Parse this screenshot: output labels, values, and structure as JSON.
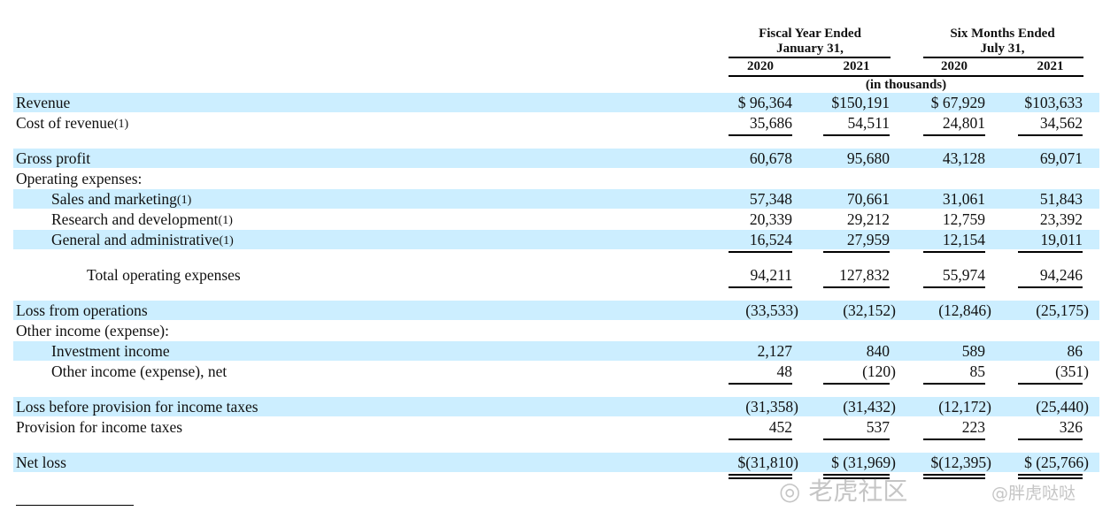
{
  "header": {
    "group1": {
      "line1": "Fiscal Year Ended",
      "line2": "January 31,"
    },
    "group2": {
      "line1": "Six Months Ended",
      "line2": "July 31,"
    },
    "columns": [
      "2020",
      "2021",
      "2020",
      "2021"
    ],
    "units": "(in thousands)"
  },
  "highlight_color": "#cceeff",
  "rows": [
    {
      "label": "Revenue",
      "values": [
        "$ 96,364",
        "$150,191",
        "$ 67,929",
        "$103,633"
      ],
      "highlight": true
    },
    {
      "label": "Cost of revenue",
      "note": "(1)",
      "values": [
        "35,686",
        "54,511",
        "24,801",
        "34,562"
      ],
      "underline": "single"
    },
    {
      "label": "Gross profit",
      "values": [
        "60,678",
        "95,680",
        "43,128",
        "69,071"
      ],
      "highlight": true
    },
    {
      "label": "Operating expenses:",
      "values": []
    },
    {
      "label": "Sales and marketing",
      "note": "(1)",
      "indent": 1,
      "values": [
        "57,348",
        "70,661",
        "31,061",
        "51,843"
      ],
      "highlight": true
    },
    {
      "label": "Research and development",
      "note": "(1)",
      "indent": 1,
      "values": [
        "20,339",
        "29,212",
        "12,759",
        "23,392"
      ]
    },
    {
      "label": "General and administrative",
      "note": "(1)",
      "indent": 1,
      "values": [
        "16,524",
        "27,959",
        "12,154",
        "19,011"
      ],
      "highlight": true,
      "underline": "single"
    },
    {
      "label": "Total operating expenses",
      "indent": 2,
      "values": [
        "94,211",
        "127,832",
        "55,974",
        "94,246"
      ],
      "underline": "single"
    },
    {
      "label": "Loss from operations",
      "values": [
        "(33,533)",
        "(32,152)",
        "(12,846)",
        "(25,175)"
      ],
      "highlight": true
    },
    {
      "label": "Other income (expense):",
      "values": []
    },
    {
      "label": "Investment income",
      "indent": 1,
      "values": [
        "2,127",
        "840",
        "589",
        "86"
      ],
      "highlight": true
    },
    {
      "label": "Other income (expense), net",
      "indent": 1,
      "values": [
        "48",
        "(120)",
        "85",
        "(351)"
      ],
      "underline": "single"
    },
    {
      "label": "Loss before provision for income taxes",
      "values": [
        "(31,358)",
        "(31,432)",
        "(12,172)",
        "(25,440)"
      ],
      "highlight": true
    },
    {
      "label": "Provision for income taxes",
      "values": [
        "452",
        "537",
        "223",
        "326"
      ],
      "underline": "single"
    },
    {
      "label": "Net loss",
      "values": [
        "$(31,810)",
        "$ (31,969)",
        "$(12,395)",
        "$ (25,766)"
      ],
      "highlight": true,
      "underline": "double"
    }
  ],
  "watermark": {
    "line1": "老虎社区",
    "line2": "@胖虎哒哒"
  }
}
